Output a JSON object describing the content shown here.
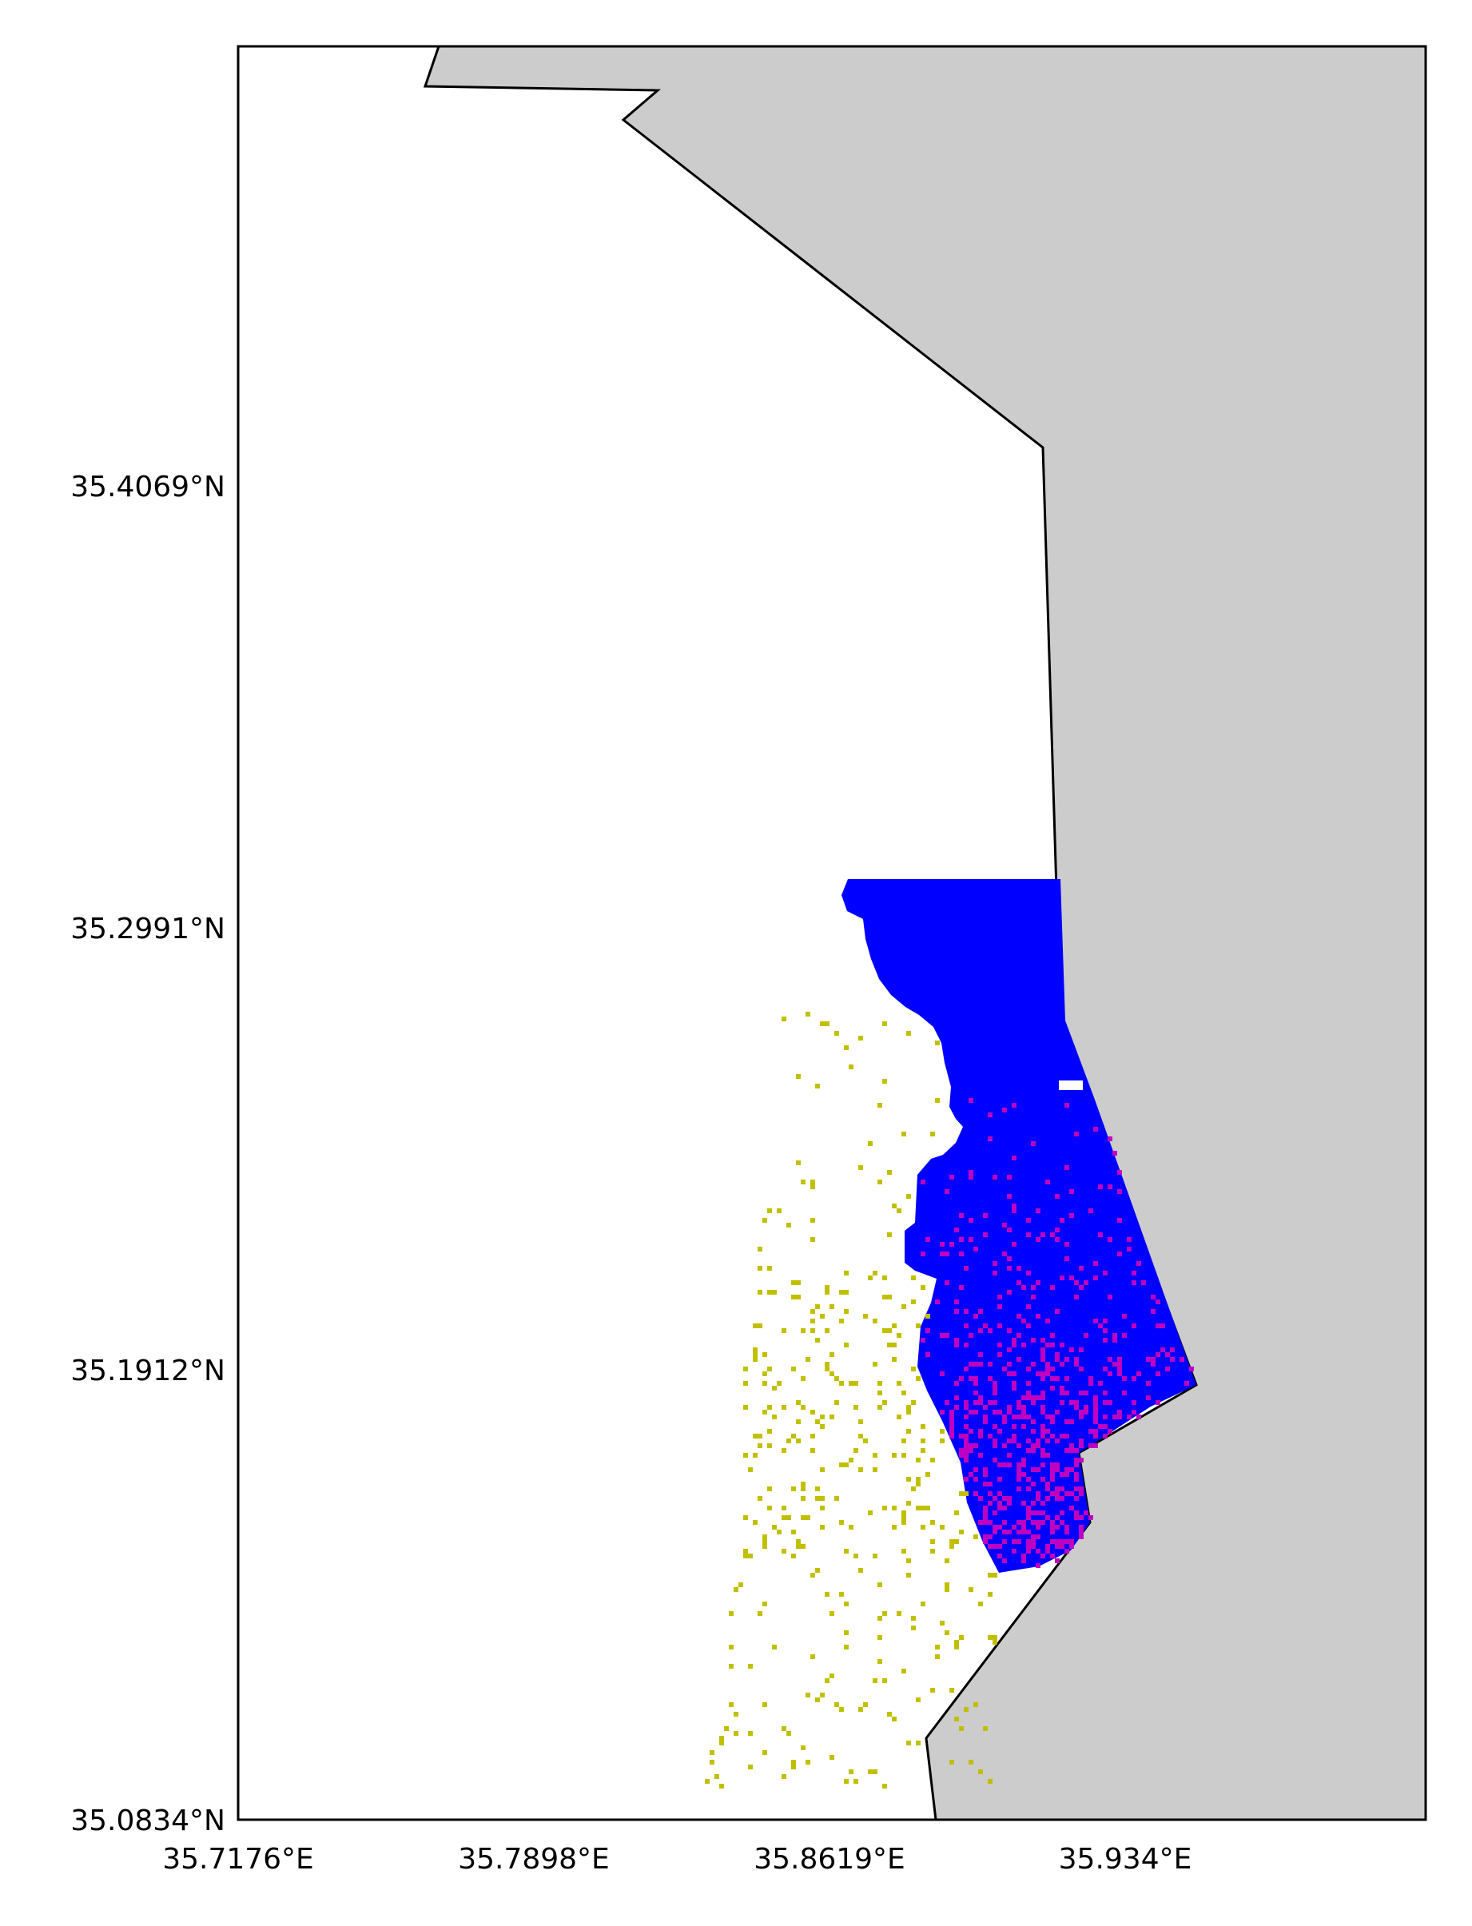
{
  "map": {
    "lon_range": [
      35.7176,
      36.0043
    ],
    "lat_range": [
      35.0834,
      35.5133
    ],
    "x_ticks": [
      {
        "value": 35.7176,
        "label": "35.7176°E"
      },
      {
        "value": 35.7898,
        "label": "35.7898°E"
      },
      {
        "value": 35.8619,
        "label": "35.8619°E"
      },
      {
        "value": 35.934,
        "label": "35.934°E"
      }
    ],
    "y_ticks": [
      {
        "value": 35.4069,
        "label": "35.4069°N"
      },
      {
        "value": 35.2991,
        "label": "35.2991°N"
      },
      {
        "value": 35.1912,
        "label": "35.1912°N"
      },
      {
        "value": 35.0834,
        "label": "35.0834°N"
      }
    ],
    "colors": {
      "land": "#cccccc",
      "sea": "#ffffff",
      "coastline": "#000000",
      "blue_region": "#0000ff",
      "magenta_cells": "#c000c0",
      "yellow_cells": "#c0c000"
    }
  }
}
